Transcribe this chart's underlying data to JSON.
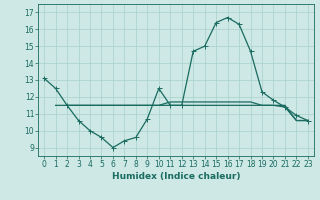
{
  "title": "",
  "xlabel": "Humidex (Indice chaleur)",
  "background_color": "#cde8e5",
  "grid_color": "#afd4d0",
  "line_color": "#1a6b60",
  "xlim": [
    -0.5,
    23.5
  ],
  "ylim": [
    8.5,
    17.5
  ],
  "yticks": [
    9,
    10,
    11,
    12,
    13,
    14,
    15,
    16,
    17
  ],
  "xticks": [
    0,
    1,
    2,
    3,
    4,
    5,
    6,
    7,
    8,
    9,
    10,
    11,
    12,
    13,
    14,
    15,
    16,
    17,
    18,
    19,
    20,
    21,
    22,
    23
  ],
  "series1_x": [
    0,
    1,
    2,
    3,
    4,
    5,
    6,
    7,
    8,
    9,
    10,
    11,
    12,
    13,
    14,
    15,
    16,
    17,
    18,
    19,
    20,
    21,
    22,
    23
  ],
  "series1_y": [
    13.1,
    12.5,
    11.5,
    10.6,
    10.0,
    9.6,
    9.0,
    9.4,
    9.6,
    10.7,
    12.5,
    11.5,
    11.5,
    14.7,
    15.0,
    16.4,
    16.7,
    16.3,
    14.7,
    12.3,
    11.8,
    11.4,
    10.9,
    10.6
  ],
  "series2_x": [
    1,
    2,
    3,
    4,
    5,
    6,
    7,
    8,
    9,
    10,
    11,
    12,
    13,
    14,
    15,
    16,
    17,
    18,
    19,
    20,
    21,
    22,
    23
  ],
  "series2_y": [
    11.5,
    11.5,
    11.5,
    11.5,
    11.5,
    11.5,
    11.5,
    11.5,
    11.5,
    11.5,
    11.5,
    11.5,
    11.5,
    11.5,
    11.5,
    11.5,
    11.5,
    11.5,
    11.5,
    11.5,
    11.5,
    10.6,
    10.6
  ],
  "series3_x": [
    2,
    3,
    4,
    5,
    6,
    7,
    8,
    9,
    10,
    11,
    12,
    13,
    14,
    15,
    16,
    17,
    18,
    19,
    20,
    21,
    22,
    23
  ],
  "series3_y": [
    11.5,
    11.5,
    11.5,
    11.5,
    11.5,
    11.5,
    11.5,
    11.5,
    11.5,
    11.7,
    11.7,
    11.7,
    11.7,
    11.7,
    11.7,
    11.7,
    11.7,
    11.5,
    11.5,
    11.4,
    10.6,
    10.6
  ],
  "tick_fontsize": 5.5,
  "xlabel_fontsize": 6.5,
  "xlabel_fontweight": "bold"
}
